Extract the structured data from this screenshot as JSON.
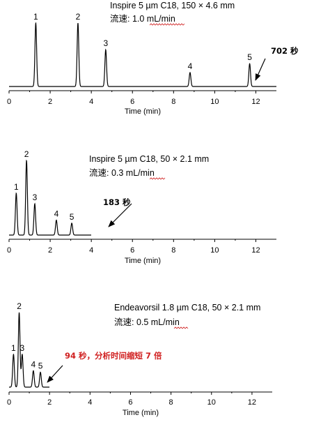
{
  "chart_data": [
    {
      "type": "line",
      "column": "Inspire 5 µm C18, 150 × 4.6 mm",
      "flow_label": "流速: ",
      "flow_value": "1.0 mL/min",
      "xlabel": "Time (min)",
      "xlim": [
        0,
        13
      ],
      "xticks": [
        0,
        2,
        4,
        6,
        8,
        10,
        12
      ],
      "run_end": 13,
      "peaks": [
        {
          "label": "1",
          "t": 1.3,
          "h": 1.0
        },
        {
          "label": "2",
          "t": 3.35,
          "h": 1.0
        },
        {
          "label": "3",
          "t": 4.7,
          "h": 0.58
        },
        {
          "label": "4",
          "t": 8.8,
          "h": 0.22
        },
        {
          "label": "5",
          "t": 11.7,
          "h": 0.36
        }
      ],
      "annotation": "702 秒",
      "annotation_color": "#000000"
    },
    {
      "type": "line",
      "column": "Inspire 5 µm C18, 50 × 2.1 mm",
      "flow_label": "流速: ",
      "flow_value": "0.3 mL/min",
      "xlabel": "Time (min)",
      "xlim": [
        0,
        13
      ],
      "xticks": [
        0,
        2,
        4,
        6,
        8,
        10,
        12
      ],
      "run_end": 4.0,
      "peaks": [
        {
          "label": "1",
          "t": 0.35,
          "h": 0.56
        },
        {
          "label": "2",
          "t": 0.85,
          "h": 1.0
        },
        {
          "label": "3",
          "t": 1.25,
          "h": 0.42
        },
        {
          "label": "4",
          "t": 2.3,
          "h": 0.2
        },
        {
          "label": "5",
          "t": 3.05,
          "h": 0.16
        }
      ],
      "annotation": "183 秒",
      "annotation_color": "#000000"
    },
    {
      "type": "line",
      "column": "Endeavorsil 1.8 µm C18, 50 × 2.1 mm",
      "flow_label": "流速: ",
      "flow_value": "0.5 mL/min",
      "xlabel": "Time (min)",
      "xlim": [
        0,
        13
      ],
      "xticks": [
        0,
        2,
        4,
        6,
        8,
        10,
        12
      ],
      "run_end": 2.0,
      "peaks": [
        {
          "label": "1",
          "t": 0.22,
          "h": 0.44
        },
        {
          "label": "2",
          "t": 0.5,
          "h": 1.0
        },
        {
          "label": "3",
          "t": 0.65,
          "h": 0.44
        },
        {
          "label": "4",
          "t": 1.2,
          "h": 0.22
        },
        {
          "label": "5",
          "t": 1.55,
          "h": 0.2
        }
      ],
      "annotation": "94 秒，分析时间缩短 7 倍",
      "annotation_color": "#d02020"
    }
  ]
}
